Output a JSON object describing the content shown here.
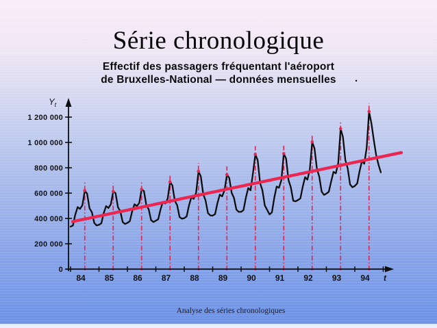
{
  "slide": {
    "title": "Série chronologique",
    "subtitle_line1": "Effectif des passagers fréquentant l'aéroport",
    "subtitle_line2": "de Bruxelles-National — données mensuelles",
    "subtitle_trailing_dot": ".",
    "footer": "Analyse des séries chronologiques"
  },
  "chart_data": {
    "type": "line",
    "title": "Effectif des passagers fréquentant l'aéroport de Bruxelles-National — données mensuelles",
    "xlabel": "t",
    "ylabel": "Yt",
    "x_tick_labels": [
      "84",
      "85",
      "86",
      "87",
      "88",
      "89",
      "90",
      "91",
      "92",
      "93",
      "94"
    ],
    "y_ticks": [
      {
        "value": 0,
        "label": "0"
      },
      {
        "value": 200000,
        "label": "200 000"
      },
      {
        "value": 400000,
        "label": "400 000"
      },
      {
        "value": 600000,
        "label": "600 000"
      },
      {
        "value": 800000,
        "label": "800 000"
      },
      {
        "value": 1000000,
        "label": "1 000 000"
      },
      {
        "value": 1200000,
        "label": "1 200 000"
      }
    ],
    "ylim": [
      0,
      1320000
    ],
    "grid": false,
    "legend_position": "none",
    "start_year": 1984,
    "months_per_year": 12,
    "series": [
      {
        "name": "passagers-mensuels",
        "color": "#0d0d0f",
        "monthly_values": [
          335000,
          345000,
          430000,
          490000,
          475000,
          505000,
          620000,
          595000,
          480000,
          450000,
          365000,
          345000,
          350000,
          362000,
          442000,
          498000,
          482000,
          512000,
          612000,
          600000,
          488000,
          458000,
          372000,
          356000,
          365000,
          378000,
          455000,
          512000,
          498000,
          522000,
          630000,
          615000,
          502000,
          472000,
          386000,
          372000,
          382000,
          394000,
          472000,
          532000,
          518000,
          556000,
          688000,
          660000,
          540000,
          505000,
          412000,
          398000,
          402000,
          416000,
          502000,
          568000,
          554000,
          602000,
          772000,
          732000,
          592000,
          542000,
          442000,
          424000,
          422000,
          434000,
          520000,
          588000,
          574000,
          622000,
          746000,
          720000,
          602000,
          562000,
          470000,
          452000,
          452000,
          466000,
          562000,
          640000,
          622000,
          756000,
          906000,
          860000,
          680000,
          622000,
          502000,
          468000,
          432000,
          448000,
          562000,
          652000,
          642000,
          702000,
          912000,
          872000,
          702000,
          646000,
          540000,
          535000,
          545000,
          558000,
          648000,
          726000,
          706000,
          786000,
          1004000,
          952000,
          790000,
          730000,
          612000,
          586000,
          596000,
          610000,
          690000,
          768000,
          756000,
          836000,
          1108000,
          1042000,
          860000,
          796000,
          668000,
          646000,
          656000,
          676000,
          772000,
          852000,
          832000,
          956000,
          1244000,
          1152000,
          1020000,
          902000,
          824000,
          764000
        ]
      }
    ],
    "trend_line": {
      "name": "tendance-lineaire",
      "color": "#ea2750",
      "start_value": 375000,
      "end_value": 920000
    },
    "seasonal_peak_lines": {
      "color": "#df2a56",
      "month_of_year": 7,
      "style": "dash-dot"
    }
  }
}
